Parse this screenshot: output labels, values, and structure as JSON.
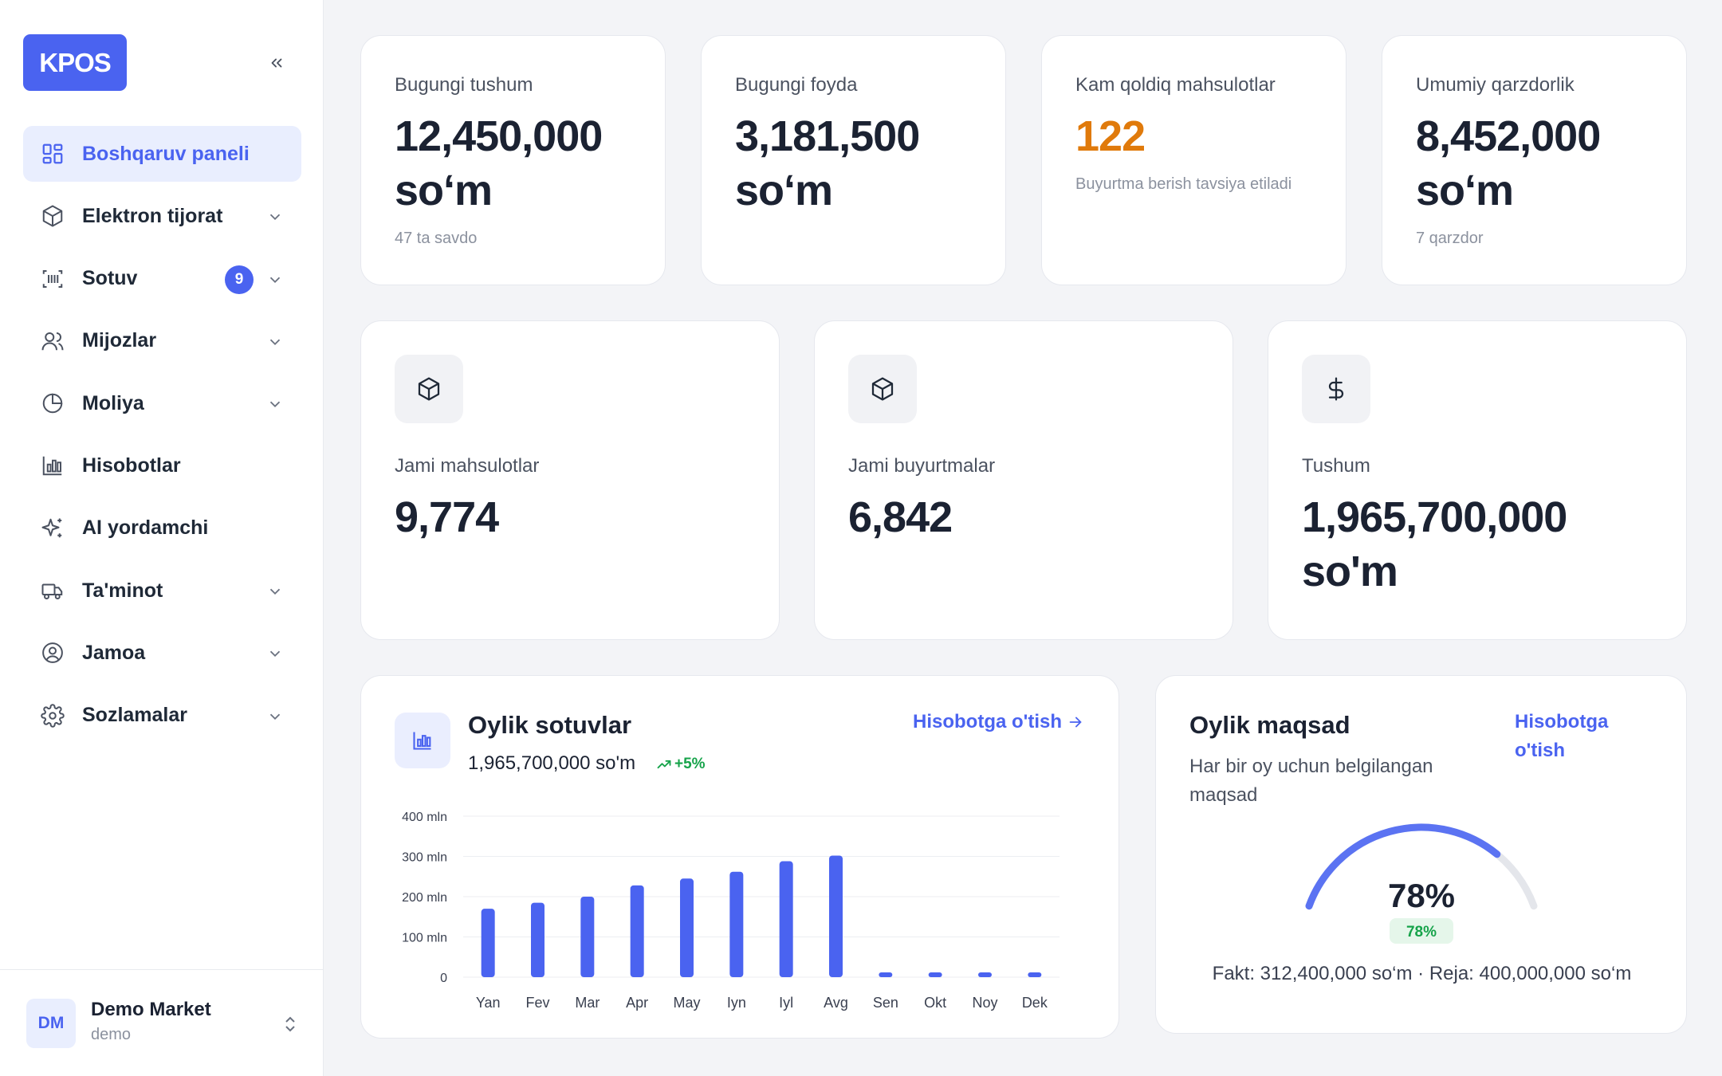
{
  "sidebar": {
    "logo": "KPOS",
    "items": [
      {
        "label": "Boshqaruv paneli",
        "icon": "dashboard-icon",
        "active": true,
        "chevron": false
      },
      {
        "label": "Elektron tijorat",
        "icon": "box-icon",
        "chevron": true
      },
      {
        "label": "Sotuv",
        "icon": "barcode-icon",
        "chevron": true,
        "badge": "9"
      },
      {
        "label": "Mijozlar",
        "icon": "users-icon",
        "chevron": true
      },
      {
        "label": "Moliya",
        "icon": "pie-chart-icon",
        "chevron": true
      },
      {
        "label": "Hisobotlar",
        "icon": "bar-chart-icon",
        "chevron": false
      },
      {
        "label": "AI yordamchi",
        "icon": "sparkles-icon",
        "chevron": false
      },
      {
        "label": "Ta'minot",
        "icon": "truck-icon",
        "chevron": true
      },
      {
        "label": "Jamoa",
        "icon": "user-circle-icon",
        "chevron": true
      },
      {
        "label": "Sozlamalar",
        "icon": "gear-icon",
        "chevron": true
      }
    ],
    "footer": {
      "avatar": "DM",
      "name": "Demo Market",
      "sub": "demo"
    }
  },
  "kpis": [
    {
      "label": "Bugungi tushum",
      "value_line1": "12,450,000",
      "value_line2": "so‘m",
      "sub": "47 ta savdo"
    },
    {
      "label": "Bugungi foyda",
      "value_line1": "3,181,500",
      "value_line2": "so‘m",
      "sub": ""
    },
    {
      "label": "Kam qoldiq mahsulotlar",
      "value_line1": "122",
      "value_line2": "",
      "sub": "Buyurtma berish tavsiya etiladi"
    },
    {
      "label": "Umumiy qarzdorlik",
      "value_line1": "8,452,000",
      "value_line2": "so‘m",
      "sub": "7 qarzdor"
    }
  ],
  "stats": [
    {
      "label": "Jami mahsulotlar",
      "value_line1": "9,774",
      "value_line2": "",
      "icon": "cube-icon"
    },
    {
      "label": "Jami buyurtmalar",
      "value_line1": "6,842",
      "value_line2": "",
      "icon": "cube-icon"
    },
    {
      "label": "Tushum",
      "value_line1": "1,965,700,000",
      "value_line2": "so'm",
      "icon": "dollar-icon"
    }
  ],
  "sales": {
    "title": "Oylik sotuvlar",
    "total": "1,965,700,000 so'm",
    "trend": "+5%",
    "link": "Hisobotga o'tish"
  },
  "chart_data": {
    "type": "bar",
    "categories": [
      "Yan",
      "Fev",
      "Mar",
      "Apr",
      "May",
      "Iyn",
      "Iyl",
      "Avg",
      "Sen",
      "Okt",
      "Noy",
      "Dek"
    ],
    "values": [
      170,
      185,
      200,
      228,
      245,
      262,
      288,
      302,
      0,
      0,
      0,
      0
    ],
    "yticks": [
      "0",
      "100 mln",
      "200 mln",
      "300 mln",
      "400 mln"
    ],
    "ylim": [
      0,
      400
    ],
    "grid": true,
    "color": "#4a63f0"
  },
  "goal": {
    "title": "Oylik maqsad",
    "subtitle": "Har bir oy uchun belgilangan maqsad",
    "link_line1": "Hisobotga",
    "link_line2": "o'tish",
    "percent": "78%",
    "percent_value": 78,
    "badge": "78%",
    "footer": "Fakt: 312,400,000 so‘m · Reja: 400,000,000 so‘m"
  }
}
